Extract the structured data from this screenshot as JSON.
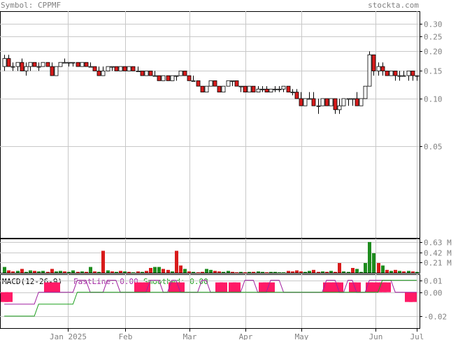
{
  "header": {
    "symbol": "Symbol: CPPMF",
    "site": "stockta.com"
  },
  "colors": {
    "up_candle": "#ffffff",
    "down_candle": "#d81b1b",
    "volume_up": "#1e8c1e",
    "volume_down": "#d81b1b",
    "macd_bar": "#ff1a66",
    "fastline": "#a020a0",
    "smoothed": "#1ea01e",
    "grid": "#c8c8c8",
    "text": "#808080"
  },
  "chart_data": [
    {
      "type": "candlestick",
      "title": "Symbol: CPPMF",
      "y_scale": "log",
      "ylim": [
        0.013,
        0.36
      ],
      "y_ticks": [
        "0.30",
        "0.25",
        "0.20",
        "0.15",
        "0.10",
        "0.05"
      ],
      "x_ticks": [
        "Jan 2025",
        "Feb",
        "Mar",
        "Apr",
        "May",
        "Jun",
        "Jul"
      ],
      "grid": true,
      "series": [
        {
          "values": [
            [
              0.16,
              0.19,
              0.15,
              0.18
            ],
            [
              0.18,
              0.19,
              0.16,
              0.16
            ],
            [
              0.16,
              0.17,
              0.15,
              0.16
            ],
            [
              0.16,
              0.17,
              0.15,
              0.17
            ],
            [
              0.17,
              0.18,
              0.15,
              0.15
            ],
            [
              0.15,
              0.17,
              0.14,
              0.16
            ],
            [
              0.16,
              0.17,
              0.15,
              0.17
            ],
            [
              0.17,
              0.17,
              0.16,
              0.16
            ],
            [
              0.16,
              0.17,
              0.15,
              0.16
            ],
            [
              0.16,
              0.17,
              0.16,
              0.17
            ],
            [
              0.17,
              0.17,
              0.16,
              0.16
            ],
            [
              0.16,
              0.17,
              0.14,
              0.14
            ],
            [
              0.14,
              0.16,
              0.14,
              0.16
            ],
            [
              0.16,
              0.17,
              0.16,
              0.17
            ],
            [
              0.17,
              0.18,
              0.17,
              0.17
            ],
            [
              0.17,
              0.17,
              0.16,
              0.17
            ],
            [
              0.17,
              0.17,
              0.16,
              0.17
            ],
            [
              0.17,
              0.17,
              0.16,
              0.16
            ],
            [
              0.16,
              0.17,
              0.16,
              0.17
            ],
            [
              0.17,
              0.17,
              0.16,
              0.16
            ],
            [
              0.16,
              0.17,
              0.16,
              0.16
            ],
            [
              0.16,
              0.16,
              0.15,
              0.15
            ],
            [
              0.15,
              0.16,
              0.14,
              0.14
            ],
            [
              0.14,
              0.16,
              0.14,
              0.15
            ],
            [
              0.15,
              0.16,
              0.15,
              0.16
            ],
            [
              0.16,
              0.16,
              0.15,
              0.16
            ],
            [
              0.16,
              0.16,
              0.15,
              0.15
            ],
            [
              0.15,
              0.16,
              0.15,
              0.16
            ],
            [
              0.16,
              0.16,
              0.15,
              0.15
            ],
            [
              0.15,
              0.16,
              0.15,
              0.16
            ],
            [
              0.16,
              0.16,
              0.15,
              0.15
            ],
            [
              0.15,
              0.16,
              0.15,
              0.15
            ],
            [
              0.15,
              0.15,
              0.14,
              0.14
            ],
            [
              0.14,
              0.15,
              0.14,
              0.15
            ],
            [
              0.15,
              0.15,
              0.14,
              0.14
            ],
            [
              0.14,
              0.15,
              0.14,
              0.14
            ],
            [
              0.14,
              0.14,
              0.13,
              0.13
            ],
            [
              0.13,
              0.14,
              0.13,
              0.14
            ],
            [
              0.14,
              0.14,
              0.13,
              0.13
            ],
            [
              0.13,
              0.14,
              0.13,
              0.14
            ],
            [
              0.14,
              0.14,
              0.13,
              0.14
            ],
            [
              0.14,
              0.15,
              0.14,
              0.15
            ],
            [
              0.15,
              0.15,
              0.14,
              0.14
            ],
            [
              0.14,
              0.14,
              0.13,
              0.13
            ],
            [
              0.13,
              0.14,
              0.13,
              0.13
            ],
            [
              0.13,
              0.13,
              0.12,
              0.12
            ],
            [
              0.12,
              0.12,
              0.11,
              0.11
            ],
            [
              0.11,
              0.12,
              0.11,
              0.12
            ],
            [
              0.12,
              0.13,
              0.12,
              0.13
            ],
            [
              0.13,
              0.13,
              0.12,
              0.12
            ],
            [
              0.12,
              0.12,
              0.11,
              0.11
            ],
            [
              0.11,
              0.12,
              0.11,
              0.12
            ],
            [
              0.12,
              0.13,
              0.12,
              0.13
            ],
            [
              0.13,
              0.13,
              0.12,
              0.13
            ],
            [
              0.13,
              0.13,
              0.12,
              0.12
            ],
            [
              0.12,
              0.12,
              0.11,
              0.12
            ],
            [
              0.12,
              0.12,
              0.11,
              0.11
            ],
            [
              0.11,
              0.12,
              0.11,
              0.12
            ],
            [
              0.12,
              0.12,
              0.11,
              0.11
            ],
            [
              0.11,
              0.12,
              0.11,
              0.115
            ],
            [
              0.115,
              0.12,
              0.11,
              0.115
            ],
            [
              0.115,
              0.12,
              0.11,
              0.11
            ],
            [
              0.11,
              0.115,
              0.11,
              0.115
            ],
            [
              0.115,
              0.12,
              0.11,
              0.115
            ],
            [
              0.115,
              0.12,
              0.11,
              0.115
            ],
            [
              0.115,
              0.12,
              0.11,
              0.12
            ],
            [
              0.12,
              0.12,
              0.11,
              0.11
            ],
            [
              0.11,
              0.115,
              0.105,
              0.11
            ],
            [
              0.11,
              0.115,
              0.1,
              0.1
            ],
            [
              0.1,
              0.11,
              0.09,
              0.09
            ],
            [
              0.09,
              0.1,
              0.09,
              0.1
            ],
            [
              0.1,
              0.11,
              0.1,
              0.1
            ],
            [
              0.1,
              0.11,
              0.09,
              0.09
            ],
            [
              0.09,
              0.1,
              0.08,
              0.09
            ],
            [
              0.09,
              0.1,
              0.09,
              0.1
            ],
            [
              0.1,
              0.1,
              0.09,
              0.09
            ],
            [
              0.09,
              0.1,
              0.09,
              0.1
            ],
            [
              0.1,
              0.1,
              0.08,
              0.085
            ],
            [
              0.085,
              0.1,
              0.08,
              0.09
            ],
            [
              0.09,
              0.1,
              0.09,
              0.1
            ],
            [
              0.1,
              0.1,
              0.09,
              0.1
            ],
            [
              0.1,
              0.1,
              0.09,
              0.1
            ],
            [
              0.1,
              0.11,
              0.09,
              0.09
            ],
            [
              0.09,
              0.1,
              0.09,
              0.1
            ],
            [
              0.1,
              0.12,
              0.1,
              0.12
            ],
            [
              0.12,
              0.2,
              0.12,
              0.19
            ],
            [
              0.19,
              0.19,
              0.14,
              0.15
            ],
            [
              0.15,
              0.17,
              0.14,
              0.16
            ],
            [
              0.16,
              0.17,
              0.14,
              0.15
            ],
            [
              0.15,
              0.15,
              0.14,
              0.14
            ],
            [
              0.14,
              0.15,
              0.14,
              0.15
            ],
            [
              0.15,
              0.15,
              0.13,
              0.14
            ],
            [
              0.14,
              0.15,
              0.13,
              0.14
            ],
            [
              0.14,
              0.15,
              0.14,
              0.14
            ],
            [
              0.14,
              0.15,
              0.13,
              0.15
            ],
            [
              0.15,
              0.15,
              0.13,
              0.14
            ],
            [
              0.14,
              0.14,
              0.13,
              0.14
            ]
          ]
        }
      ]
    },
    {
      "type": "bar",
      "y_ticks": [
        "0.63 M",
        "0.42 M",
        "0.21 M"
      ],
      "ylim": [
        0,
        0.7
      ],
      "series": [
        {
          "values": [
            0.12,
            0.05,
            0.03,
            0.04,
            0.08,
            0.02,
            0.05,
            0.04,
            0.03,
            0.04,
            0.02,
            0.08,
            0.03,
            0.04,
            0.03,
            0.02,
            0.05,
            0.02,
            0.03,
            0.02,
            0.12,
            0.03,
            0.02,
            0.45,
            0.05,
            0.03,
            0.02,
            0.04,
            0.03,
            0.02,
            0.01,
            0.03,
            0.02,
            0.04,
            0.1,
            0.12,
            0.12,
            0.08,
            0.06,
            0.03,
            0.45,
            0.15,
            0.08,
            0.03,
            0.02,
            0.01,
            0.02,
            0.08,
            0.06,
            0.04,
            0.03,
            0.02,
            0.04,
            0.02,
            0.01,
            0.02,
            0.01,
            0.02,
            0.02,
            0.03,
            0.02,
            0.01,
            0.02,
            0.02,
            0.01,
            0.01,
            0.04,
            0.03,
            0.05,
            0.03,
            0.02,
            0.04,
            0.06,
            0.02,
            0.03,
            0.02,
            0.04,
            0.02,
            0.2,
            0.03,
            0.02,
            0.1,
            0.08,
            0.02,
            0.2,
            0.63,
            0.4,
            0.2,
            0.15,
            0.06,
            0.04,
            0.06,
            0.04,
            0.03,
            0.04,
            0.03,
            0.02
          ],
          "up": [
            1,
            0,
            0,
            1,
            0,
            1,
            1,
            0,
            1,
            1,
            0,
            0,
            1,
            1,
            0,
            1,
            1,
            0,
            1,
            0,
            1,
            0,
            1,
            0,
            1,
            0,
            1,
            0,
            1,
            0,
            1,
            0,
            1,
            0,
            0,
            1,
            1,
            0,
            0,
            1,
            0,
            0,
            1,
            0,
            1,
            0,
            0,
            1,
            1,
            0,
            0,
            1,
            1,
            0,
            0,
            1,
            0,
            1,
            0,
            1,
            1,
            0,
            1,
            1,
            1,
            1,
            0,
            0,
            0,
            0,
            1,
            1,
            0,
            0,
            1,
            0,
            1,
            0,
            0,
            1,
            1,
            0,
            1,
            1,
            1,
            1,
            1,
            0,
            1,
            0,
            1,
            0,
            1,
            0,
            1,
            0,
            1
          ]
        }
      ]
    },
    {
      "type": "line",
      "title": "MACD(12-26-9)",
      "y_ticks": [
        "0.01",
        "0.00",
        "-0.02"
      ],
      "ylim": [
        -0.03,
        0.015
      ],
      "series": [
        {
          "name": "FastLine: 0.00"
        },
        {
          "name": "Smoothed: 0.00"
        }
      ],
      "histogram": [
        -1,
        -1,
        0,
        0,
        0,
        0,
        0,
        0,
        0,
        0,
        1,
        1,
        1,
        0,
        0,
        0,
        0,
        0,
        0,
        0,
        0,
        0,
        0,
        0,
        0,
        0,
        0,
        0,
        0,
        0,
        0,
        1,
        1,
        1,
        0,
        0,
        0,
        0,
        0,
        1,
        1,
        1,
        0,
        0,
        0,
        0,
        0,
        0,
        0,
        0,
        1,
        1,
        0,
        1,
        1,
        0,
        0,
        0,
        0,
        0,
        1,
        1,
        1,
        0,
        0,
        0,
        0,
        0,
        0,
        0,
        0,
        0,
        0,
        0,
        0,
        1,
        1,
        1,
        1,
        0,
        0,
        1,
        1,
        0,
        0,
        1,
        1,
        1,
        1,
        1,
        0,
        0,
        0,
        0,
        -1,
        -1,
        0
      ],
      "fastline_levels": [
        -1,
        -1,
        -1,
        -1,
        -1,
        -1,
        -1,
        -1,
        0,
        0,
        0,
        0,
        0,
        0,
        0,
        0,
        0,
        1,
        1,
        1,
        0,
        0,
        0,
        0,
        1,
        1,
        1,
        0,
        0,
        0,
        0,
        0,
        0,
        0,
        1,
        1,
        1,
        0,
        0,
        1,
        1,
        0,
        0,
        0,
        0,
        0,
        1,
        1,
        0,
        0,
        0,
        0,
        0,
        0,
        0,
        0,
        1,
        1,
        1,
        0,
        0,
        0,
        1,
        1,
        1,
        0,
        0,
        0,
        0,
        0,
        0,
        0,
        0,
        0,
        0,
        1,
        1,
        1,
        0,
        0,
        1,
        1,
        0,
        0,
        0,
        1,
        1,
        1,
        1,
        1,
        1,
        0,
        0,
        0,
        0,
        0,
        0
      ],
      "smoothed_levels": [
        -2,
        -2,
        -2,
        -2,
        -2,
        -2,
        -2,
        -2,
        -1,
        -1,
        -1,
        -1,
        -1,
        -1,
        -1,
        -1,
        -1,
        0,
        0,
        0,
        0,
        0,
        0,
        0,
        0,
        0,
        0,
        0,
        0,
        0,
        0,
        0,
        0,
        0,
        0,
        0,
        0,
        0,
        0,
        0,
        0,
        0,
        0,
        0,
        0,
        0,
        0,
        0,
        0,
        0,
        0,
        0,
        0,
        0,
        0,
        0,
        0,
        0,
        0,
        0,
        0,
        0,
        0,
        0,
        0,
        0,
        0,
        0,
        0,
        0,
        0,
        0,
        0,
        0,
        0,
        0,
        0,
        0,
        0,
        0,
        0,
        0,
        0,
        0,
        0,
        0,
        0,
        0,
        1,
        1,
        1,
        1,
        1,
        1,
        1,
        1,
        1
      ]
    }
  ]
}
